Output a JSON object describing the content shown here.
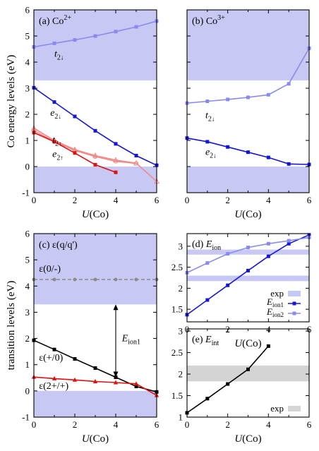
{
  "colors": {
    "band": "#c8c8f5",
    "gray": "#d4d4d4",
    "blue": "#1515d8",
    "lightblue": "#8a8aee",
    "red": "#e01010",
    "pink": "#f08a8a",
    "black": "#000000",
    "dashgray": "#8a8a8a"
  },
  "chart_data": [
    {
      "id": "a",
      "type": "line",
      "title_main": "(a) Co",
      "title_sup": "2+",
      "ylabel": "Co energy levels (eV)",
      "xlabel_italic": "U",
      "xlabel_rest": "(Co)",
      "x_ticks": [
        "0",
        "2",
        "4",
        "6"
      ],
      "y_ticks": [
        "-1",
        "0",
        "1",
        "2",
        "3",
        "4",
        "5",
        "6"
      ],
      "xlim": [
        0,
        6
      ],
      "ylim": [
        -1,
        6
      ],
      "bands": [
        [
          3.3,
          6
        ],
        [
          -1,
          0
        ]
      ],
      "series": [
        {
          "color_key": "lightblue",
          "marker": "square",
          "x": [
            0,
            1,
            2,
            3,
            4,
            5,
            6
          ],
          "y": [
            4.58,
            4.72,
            4.85,
            5.0,
            5.17,
            5.35,
            5.57
          ]
        },
        {
          "color_key": "blue",
          "marker": "square",
          "x": [
            0,
            1,
            2,
            3,
            4,
            5,
            6
          ],
          "y": [
            3.02,
            2.47,
            1.92,
            1.37,
            0.87,
            0.42,
            0.05
          ]
        },
        {
          "color_key": "pink",
          "marker": "triangle-open",
          "x": [
            0,
            1,
            2,
            3,
            4,
            5,
            6
          ],
          "y": [
            1.47,
            1.0,
            0.65,
            0.42,
            0.25,
            0.13,
            -0.57
          ]
        },
        {
          "color_key": "pink",
          "marker": "circle-open",
          "x": [
            0,
            1,
            2,
            3,
            4,
            5
          ],
          "y": [
            1.38,
            0.96,
            0.62,
            0.38,
            0.2,
            0.12
          ]
        },
        {
          "color_key": "red",
          "marker": "square",
          "x": [
            0,
            1,
            2,
            3,
            4
          ],
          "y": [
            1.3,
            0.95,
            0.52,
            0.07,
            -0.22
          ]
        }
      ],
      "labels": [
        {
          "base": "t",
          "sub": "2",
          "arrow": "↓",
          "x": 1.0,
          "y": 4.2,
          "color_key": "lightblue"
        },
        {
          "base": "e",
          "sub": "2",
          "arrow": "↓",
          "x": 0.8,
          "y": 1.95,
          "color_key": "blue"
        },
        {
          "base": "t",
          "sub": "2",
          "arrow": "↑",
          "x": 0.9,
          "y": 0.9,
          "color_key": "pink"
        },
        {
          "base": "e",
          "sub": "2",
          "arrow": "↑",
          "x": 0.9,
          "y": 0.36,
          "color_key": "red"
        }
      ]
    },
    {
      "id": "b",
      "type": "line",
      "title_main": "(b) Co",
      "title_sup": "3+",
      "xlabel_italic": "U",
      "xlabel_rest": "(Co)",
      "x_ticks": [
        "0",
        "2",
        "4",
        "6"
      ],
      "xlim": [
        0,
        6
      ],
      "ylim": [
        -1,
        6
      ],
      "bands": [
        [
          3.3,
          6
        ],
        [
          -1,
          0
        ]
      ],
      "series": [
        {
          "color_key": "lightblue",
          "marker": "square",
          "x": [
            0,
            1,
            2,
            3,
            4,
            5,
            6
          ],
          "y": [
            2.43,
            2.5,
            2.57,
            2.65,
            2.75,
            3.17,
            4.53
          ]
        },
        {
          "color_key": "blue",
          "marker": "square",
          "x": [
            0,
            1,
            2,
            3,
            4,
            5,
            6
          ],
          "y": [
            1.09,
            0.95,
            0.75,
            0.55,
            0.35,
            0.1,
            0.08
          ]
        }
      ],
      "labels": [
        {
          "base": "t",
          "sub": "2",
          "arrow": "↓",
          "x": 0.9,
          "y": 1.85,
          "color_key": "lightblue"
        },
        {
          "base": "e",
          "sub": "2",
          "arrow": "↓",
          "x": 0.9,
          "y": 0.45,
          "color_key": "blue"
        }
      ]
    },
    {
      "id": "c",
      "type": "line",
      "title": "(c) ε(q/q')",
      "ylabel": "transition levels (eV)",
      "xlabel_italic": "U",
      "xlabel_rest": "(Co)",
      "x_ticks": [
        "0",
        "2",
        "4",
        "6"
      ],
      "y_ticks": [
        "-1",
        "0",
        "1",
        "2",
        "3",
        "4",
        "5",
        "6"
      ],
      "xlim": [
        0,
        6
      ],
      "ylim": [
        -1,
        6
      ],
      "bands": [
        [
          3.3,
          6
        ],
        [
          -1,
          0
        ]
      ],
      "series": [
        {
          "name": "ε(0/-)",
          "color_key": "dashgray",
          "marker": "circle",
          "dashed": true,
          "x": [
            0,
            1,
            2,
            3,
            4,
            5,
            6
          ],
          "y": [
            4.25,
            4.25,
            4.25,
            4.25,
            4.25,
            4.25,
            4.25
          ]
        },
        {
          "name": "ε(+/0)",
          "color_key": "black",
          "marker": "square",
          "x": [
            0,
            1,
            2,
            3,
            4,
            5,
            6
          ],
          "y": [
            1.93,
            1.58,
            1.22,
            0.87,
            0.52,
            0.17,
            -0.04
          ]
        },
        {
          "name": "ε(2+/+)",
          "color_key": "red",
          "marker": "triangle",
          "x": [
            0,
            1,
            2,
            3,
            4,
            5,
            6
          ],
          "y": [
            0.53,
            0.47,
            0.42,
            0.36,
            0.32,
            0.27,
            -0.17
          ]
        }
      ],
      "annotations": [
        {
          "text": "ε(0/-)",
          "x": 0.25,
          "y": 4.55,
          "color_key": "dashgray"
        },
        {
          "text": "ε(+/0)",
          "x": 0.25,
          "y": 1.15,
          "color_key": "black"
        },
        {
          "text": "ε(2+/+)",
          "x": 0.25,
          "y": 0.08,
          "color_key": "red"
        }
      ],
      "arrow": {
        "x": 4.0,
        "y_from": 3.3,
        "y_to": 0.52,
        "label_base": "E",
        "label_sub": "ion1",
        "label_x": 4.3,
        "label_y": 1.9
      }
    },
    {
      "id": "d",
      "type": "line",
      "title_base": "(d) E",
      "title_sub": "ion",
      "xlabel_italic": "U",
      "xlabel_rest": "(Co)",
      "x_ticks": [
        "0",
        "2",
        "4",
        "6"
      ],
      "y_ticks": [
        "1.5",
        "2",
        "2.5",
        "3"
      ],
      "xlim": [
        0,
        6
      ],
      "ylim": [
        1.2,
        3.3
      ],
      "bands": [
        [
          2.17,
          2.3
        ],
        [
          2.8,
          2.92
        ]
      ],
      "series": [
        {
          "name": "E_ion1",
          "color_key": "blue",
          "marker": "square",
          "x": [
            0,
            1,
            2,
            3,
            4,
            5,
            6
          ],
          "y": [
            1.37,
            1.72,
            2.07,
            2.42,
            2.76,
            3.06,
            3.27
          ]
        },
        {
          "name": "E_ion2",
          "color_key": "lightblue",
          "marker": "square",
          "x": [
            0,
            1,
            2,
            3,
            4,
            5,
            6
          ],
          "y": [
            2.37,
            2.6,
            2.82,
            2.97,
            3.06,
            3.13,
            3.21
          ]
        }
      ],
      "legend": {
        "position": "bottom-right",
        "entries": [
          {
            "text": "exp",
            "swatch": "band"
          },
          {
            "base": "E",
            "sub": "ion1",
            "swatch": "blue"
          },
          {
            "base": "E",
            "sub": "ion2",
            "swatch": "lightblue"
          }
        ]
      }
    },
    {
      "id": "e",
      "type": "line",
      "title_base": "(e) E",
      "title_sub": "int",
      "xlabel_italic": "U",
      "xlabel_rest": "(Co)",
      "x_ticks": [
        "0",
        "2",
        "4",
        "6"
      ],
      "y_ticks": [
        "1",
        "1.5",
        "2",
        "2.5",
        "3"
      ],
      "xlim": [
        0,
        6
      ],
      "ylim": [
        1,
        3.05
      ],
      "bands": [
        [
          1.83,
          2.2
        ]
      ],
      "band_color_key": "gray",
      "series": [
        {
          "color_key": "black",
          "marker": "square",
          "x": [
            0,
            1,
            2,
            3,
            4
          ],
          "y": [
            1.1,
            1.43,
            1.77,
            2.11,
            2.65
          ]
        }
      ],
      "legend": {
        "position": "bottom-right",
        "entries": [
          {
            "text": "exp",
            "swatch": "gray"
          }
        ]
      }
    }
  ]
}
